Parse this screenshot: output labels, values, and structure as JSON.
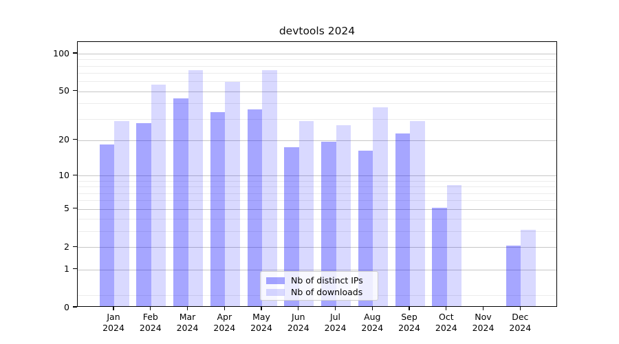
{
  "title": "devtools 2024",
  "colors": {
    "bar_base": "#0000ff",
    "grid_major": "#c6c6c6",
    "grid_minor": "#ececec",
    "axis": "#000000",
    "legend_border": "#cccccc"
  },
  "legend": {
    "items": [
      "Nb of distinct IPs",
      "Nb of downloads"
    ]
  },
  "chart_data": {
    "type": "bar",
    "title": "devtools 2024",
    "categories": [
      "Jan 2024",
      "Feb 2024",
      "Mar 2024",
      "Apr 2024",
      "May 2024",
      "Jun 2024",
      "Jul 2024",
      "Aug 2024",
      "Sep 2024",
      "Oct 2024",
      "Nov 2024",
      "Dec 2024"
    ],
    "series": [
      {
        "name": "Nb of distinct IPs",
        "values": [
          18,
          27,
          43,
          33,
          35,
          17,
          19,
          16,
          22,
          5,
          0,
          2
        ],
        "color": "#0000ff",
        "alpha": 0.35
      },
      {
        "name": "Nb of downloads",
        "values": [
          28,
          55,
          72,
          58,
          72,
          28,
          26,
          36,
          28,
          8,
          0,
          3
        ],
        "color": "#0000ff",
        "alpha": 0.15
      }
    ],
    "xlabel": "",
    "ylabel": "",
    "yscale": "log1p",
    "ylim": [
      0,
      124
    ],
    "yticks": [
      100,
      50,
      20,
      10,
      5,
      2,
      1,
      0
    ],
    "yticks_minor": [
      0.25,
      3,
      4,
      6,
      7,
      8,
      9,
      30,
      40,
      60,
      70,
      80,
      90
    ],
    "grid": true,
    "legend_position": "lower center"
  }
}
